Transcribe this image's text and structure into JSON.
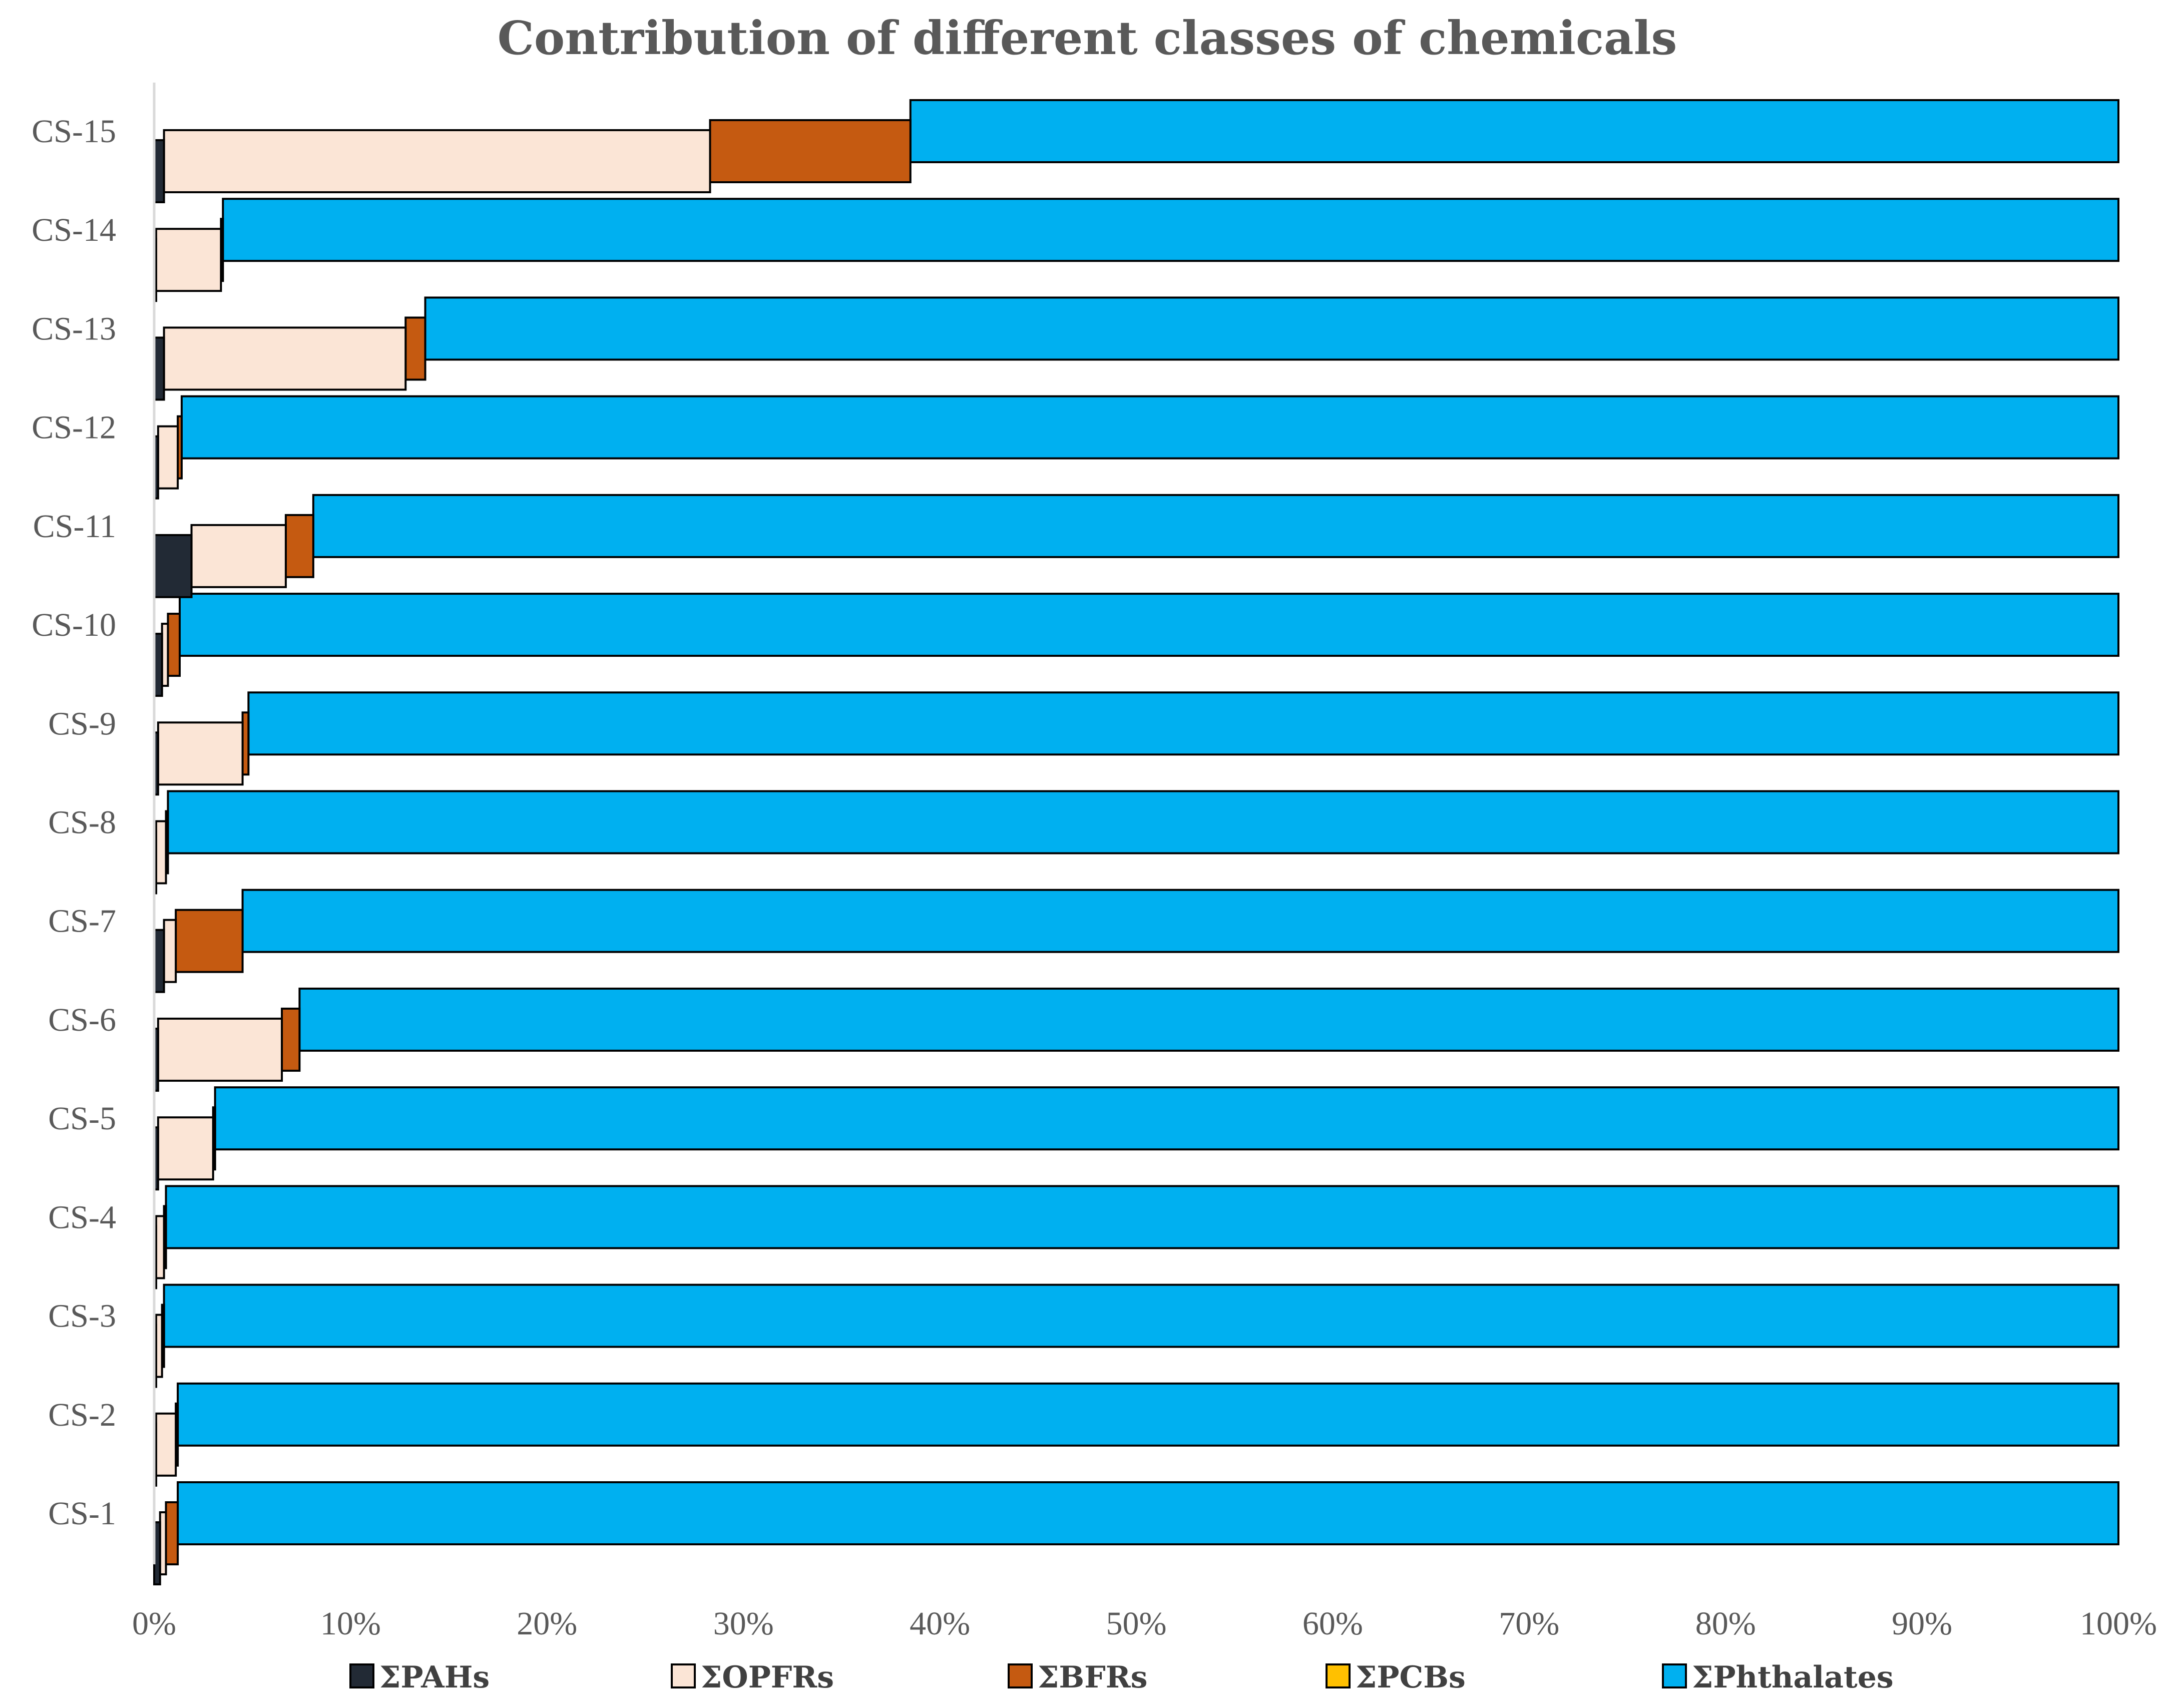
{
  "chart_data": {
    "type": "bar",
    "orientation": "horizontal",
    "stacked": "percent",
    "title": "Contribution of different classes of chemicals",
    "xlabel": "",
    "ylabel": "",
    "xlim": [
      0,
      100
    ],
    "x_ticks": [
      "0%",
      "10%",
      "20%",
      "30%",
      "40%",
      "50%",
      "60%",
      "70%",
      "80%",
      "90%",
      "100%"
    ],
    "grid": false,
    "legend_position": "bottom",
    "categories": [
      "CS-1",
      "CS-2",
      "CS-3",
      "CS-4",
      "CS-5",
      "CS-6",
      "CS-7",
      "CS-8",
      "CS-9",
      "CS-10",
      "CS-11",
      "CS-12",
      "CS-13",
      "CS-14",
      "CS-15"
    ],
    "series": [
      {
        "name": "ΣPAHs",
        "color": "#222a35",
        "values": [
          0.3,
          0.1,
          0.1,
          0.1,
          0.2,
          0.2,
          0.5,
          0.1,
          0.2,
          0.4,
          1.9,
          0.2,
          0.5,
          0.1,
          0.5
        ]
      },
      {
        "name": "ΣOPFRs",
        "color": "#fbe5d6",
        "values": [
          0.3,
          1.0,
          0.3,
          0.4,
          2.8,
          6.3,
          0.6,
          0.5,
          4.3,
          0.3,
          4.8,
          1.0,
          12.3,
          3.3,
          27.8
        ]
      },
      {
        "name": "ΣBFRs",
        "color": "#c55a11",
        "values": [
          0.6,
          0.1,
          0.1,
          0.1,
          0.1,
          0.9,
          3.4,
          0.1,
          0.3,
          0.6,
          1.4,
          0.2,
          1.0,
          0.1,
          10.2
        ]
      },
      {
        "name": "ΣPCBs",
        "color": "#ffc000",
        "values": [
          0,
          0,
          0,
          0,
          0,
          0,
          0,
          0,
          0,
          0,
          0,
          0,
          0,
          0,
          0
        ]
      },
      {
        "name": "ΣPhthalates",
        "color": "#00b0f0",
        "values": [
          98.8,
          98.8,
          99.5,
          99.4,
          96.9,
          92.6,
          95.5,
          99.3,
          95.2,
          98.7,
          91.9,
          98.6,
          86.2,
          96.5,
          61.5
        ]
      }
    ]
  }
}
